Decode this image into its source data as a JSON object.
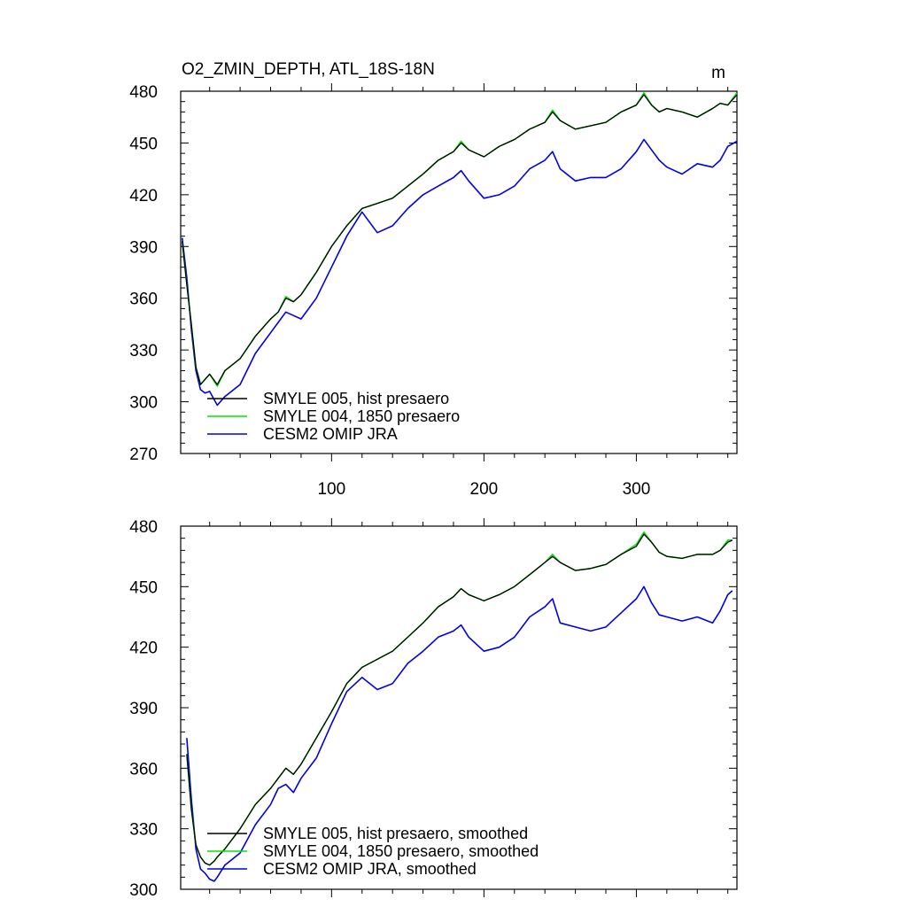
{
  "figure": {
    "title": "O2_ZMIN_DEPTH, ATL_18S-18N",
    "units": "m"
  },
  "colors": {
    "black": "#000000",
    "green": "#00e600",
    "blue": "#0000e6"
  },
  "chart_data": [
    {
      "type": "line",
      "title": "O2_ZMIN_DEPTH, ATL_18S-18N",
      "units_label": "m",
      "xlabel": "",
      "ylabel": "",
      "xlim": [
        1,
        366
      ],
      "ylim": [
        270,
        480
      ],
      "x_ticks": [
        100,
        200,
        300
      ],
      "y_ticks": [
        270,
        300,
        330,
        360,
        390,
        420,
        450,
        480
      ],
      "grid": false,
      "legend_position": "bottom-left",
      "x": [
        2,
        5,
        8,
        11,
        14,
        17,
        20,
        25,
        30,
        40,
        50,
        60,
        65,
        70,
        75,
        80,
        90,
        100,
        110,
        120,
        130,
        140,
        150,
        160,
        170,
        180,
        185,
        190,
        200,
        210,
        220,
        230,
        240,
        245,
        250,
        260,
        270,
        280,
        290,
        300,
        305,
        310,
        315,
        320,
        330,
        340,
        350,
        355,
        360,
        366
      ],
      "series": [
        {
          "name": "SMYLE 005, hist presaero",
          "color": "black",
          "values": [
            393,
            368,
            345,
            320,
            310,
            313,
            316,
            310,
            318,
            325,
            338,
            348,
            352,
            360,
            358,
            362,
            375,
            390,
            402,
            412,
            415,
            418,
            425,
            432,
            440,
            445,
            450,
            446,
            442,
            448,
            452,
            458,
            462,
            468,
            463,
            458,
            460,
            462,
            468,
            472,
            478,
            472,
            468,
            470,
            468,
            465,
            470,
            473,
            472,
            478
          ]
        },
        {
          "name": "SMYLE 004, 1850 presaero",
          "color": "green",
          "values": [
            393,
            368,
            345,
            320,
            310,
            313,
            316,
            309,
            318,
            325,
            338,
            348,
            352,
            361,
            358,
            362,
            375,
            390,
            402,
            412,
            415,
            418,
            425,
            432,
            440,
            445,
            451,
            446,
            442,
            448,
            452,
            458,
            462,
            469,
            463,
            458,
            460,
            462,
            468,
            472,
            479,
            472,
            468,
            470,
            468,
            465,
            470,
            473,
            472,
            479
          ]
        },
        {
          "name": "CESM2 OMIP JRA",
          "color": "blue",
          "values": [
            395,
            372,
            342,
            318,
            307,
            305,
            306,
            298,
            303,
            310,
            328,
            340,
            346,
            352,
            350,
            348,
            360,
            378,
            396,
            410,
            398,
            402,
            412,
            420,
            425,
            430,
            434,
            428,
            418,
            420,
            425,
            435,
            440,
            445,
            435,
            428,
            430,
            430,
            435,
            445,
            452,
            446,
            440,
            436,
            432,
            438,
            436,
            440,
            448,
            451
          ]
        }
      ]
    },
    {
      "type": "line",
      "title": "",
      "xlabel": "",
      "ylabel": "",
      "xlim": [
        1,
        366
      ],
      "ylim": [
        300,
        480
      ],
      "x_ticks": [
        100,
        200,
        300
      ],
      "y_ticks": [
        300,
        330,
        360,
        390,
        420,
        450,
        480
      ],
      "grid": false,
      "legend_position": "bottom-left",
      "x": [
        5,
        8,
        11,
        14,
        17,
        20,
        23,
        25,
        30,
        40,
        50,
        60,
        65,
        70,
        75,
        80,
        90,
        100,
        110,
        120,
        130,
        140,
        150,
        160,
        170,
        180,
        185,
        190,
        200,
        210,
        220,
        230,
        240,
        245,
        250,
        260,
        270,
        280,
        290,
        300,
        305,
        310,
        315,
        320,
        330,
        340,
        350,
        355,
        360,
        363
      ],
      "series": [
        {
          "name": "SMYLE 005, hist presaero, smoothed",
          "color": "black",
          "values": [
            367,
            340,
            322,
            316,
            313,
            312,
            314,
            316,
            320,
            330,
            342,
            350,
            355,
            360,
            357,
            362,
            375,
            388,
            402,
            410,
            414,
            418,
            425,
            432,
            440,
            445,
            449,
            446,
            443,
            446,
            450,
            456,
            462,
            465,
            462,
            458,
            459,
            461,
            466,
            470,
            476,
            472,
            467,
            465,
            464,
            466,
            466,
            468,
            472,
            473
          ]
        },
        {
          "name": "SMYLE 004, 1850 presaero, smoothed",
          "color": "green",
          "values": [
            367,
            340,
            322,
            316,
            313,
            312,
            314,
            316,
            320,
            330,
            342,
            350,
            355,
            360,
            357,
            362,
            375,
            388,
            402,
            410,
            414,
            418,
            425,
            432,
            440,
            445,
            449,
            446,
            443,
            446,
            450,
            456,
            462,
            466,
            462,
            458,
            459,
            461,
            466,
            471,
            477,
            472,
            467,
            465,
            464,
            466,
            466,
            468,
            473,
            473
          ]
        },
        {
          "name": "CESM2 OMIP JRA, smoothed",
          "color": "blue",
          "values": [
            375,
            345,
            320,
            310,
            308,
            305,
            304,
            306,
            312,
            318,
            332,
            342,
            350,
            352,
            348,
            355,
            365,
            382,
            398,
            405,
            399,
            402,
            412,
            418,
            425,
            428,
            431,
            425,
            418,
            420,
            425,
            435,
            440,
            444,
            432,
            430,
            428,
            430,
            437,
            444,
            450,
            442,
            436,
            435,
            433,
            435,
            432,
            438,
            446,
            448
          ]
        }
      ]
    }
  ]
}
